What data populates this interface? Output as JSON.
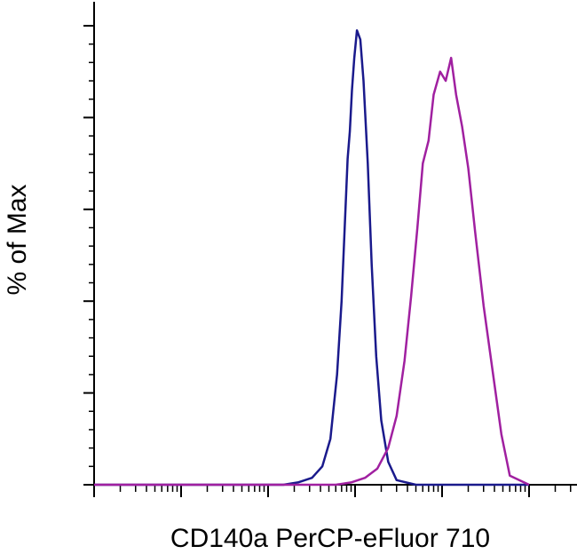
{
  "chart_data": {
    "type": "line",
    "title": "",
    "xlabel": "CD140a PerCP-eFluor 710",
    "ylabel": "% of Max",
    "x_scale": "log",
    "xlim": [
      1,
      100000
    ],
    "ylim": [
      0,
      100
    ],
    "grid": false,
    "legend": "none",
    "series": [
      {
        "color": "#1a1a8c",
        "x": [
          1,
          150,
          220,
          320,
          420,
          520,
          620,
          700,
          760,
          820,
          870,
          920,
          980,
          1050,
          1150,
          1250,
          1400,
          1550,
          1750,
          2000,
          2400,
          3000,
          5000,
          100000
        ],
        "y": [
          0,
          0,
          0.5,
          1.5,
          4,
          10,
          24,
          40,
          56,
          71,
          77,
          86,
          93,
          99,
          97,
          88,
          70,
          48,
          28,
          14,
          5,
          1,
          0,
          0
        ]
      },
      {
        "color": "#a020a0",
        "x": [
          1,
          600,
          900,
          1300,
          1800,
          2400,
          3000,
          3700,
          4400,
          5200,
          6000,
          7000,
          8000,
          9500,
          11000,
          12700,
          14500,
          17000,
          20000,
          24000,
          30000,
          38000,
          48000,
          60000,
          100000
        ],
        "y": [
          0,
          0,
          0.5,
          1.5,
          3.5,
          8,
          15,
          27,
          41,
          56,
          70,
          75,
          85,
          90,
          88,
          93,
          85,
          78,
          69,
          55,
          39,
          25,
          11,
          2,
          0
        ]
      }
    ]
  }
}
